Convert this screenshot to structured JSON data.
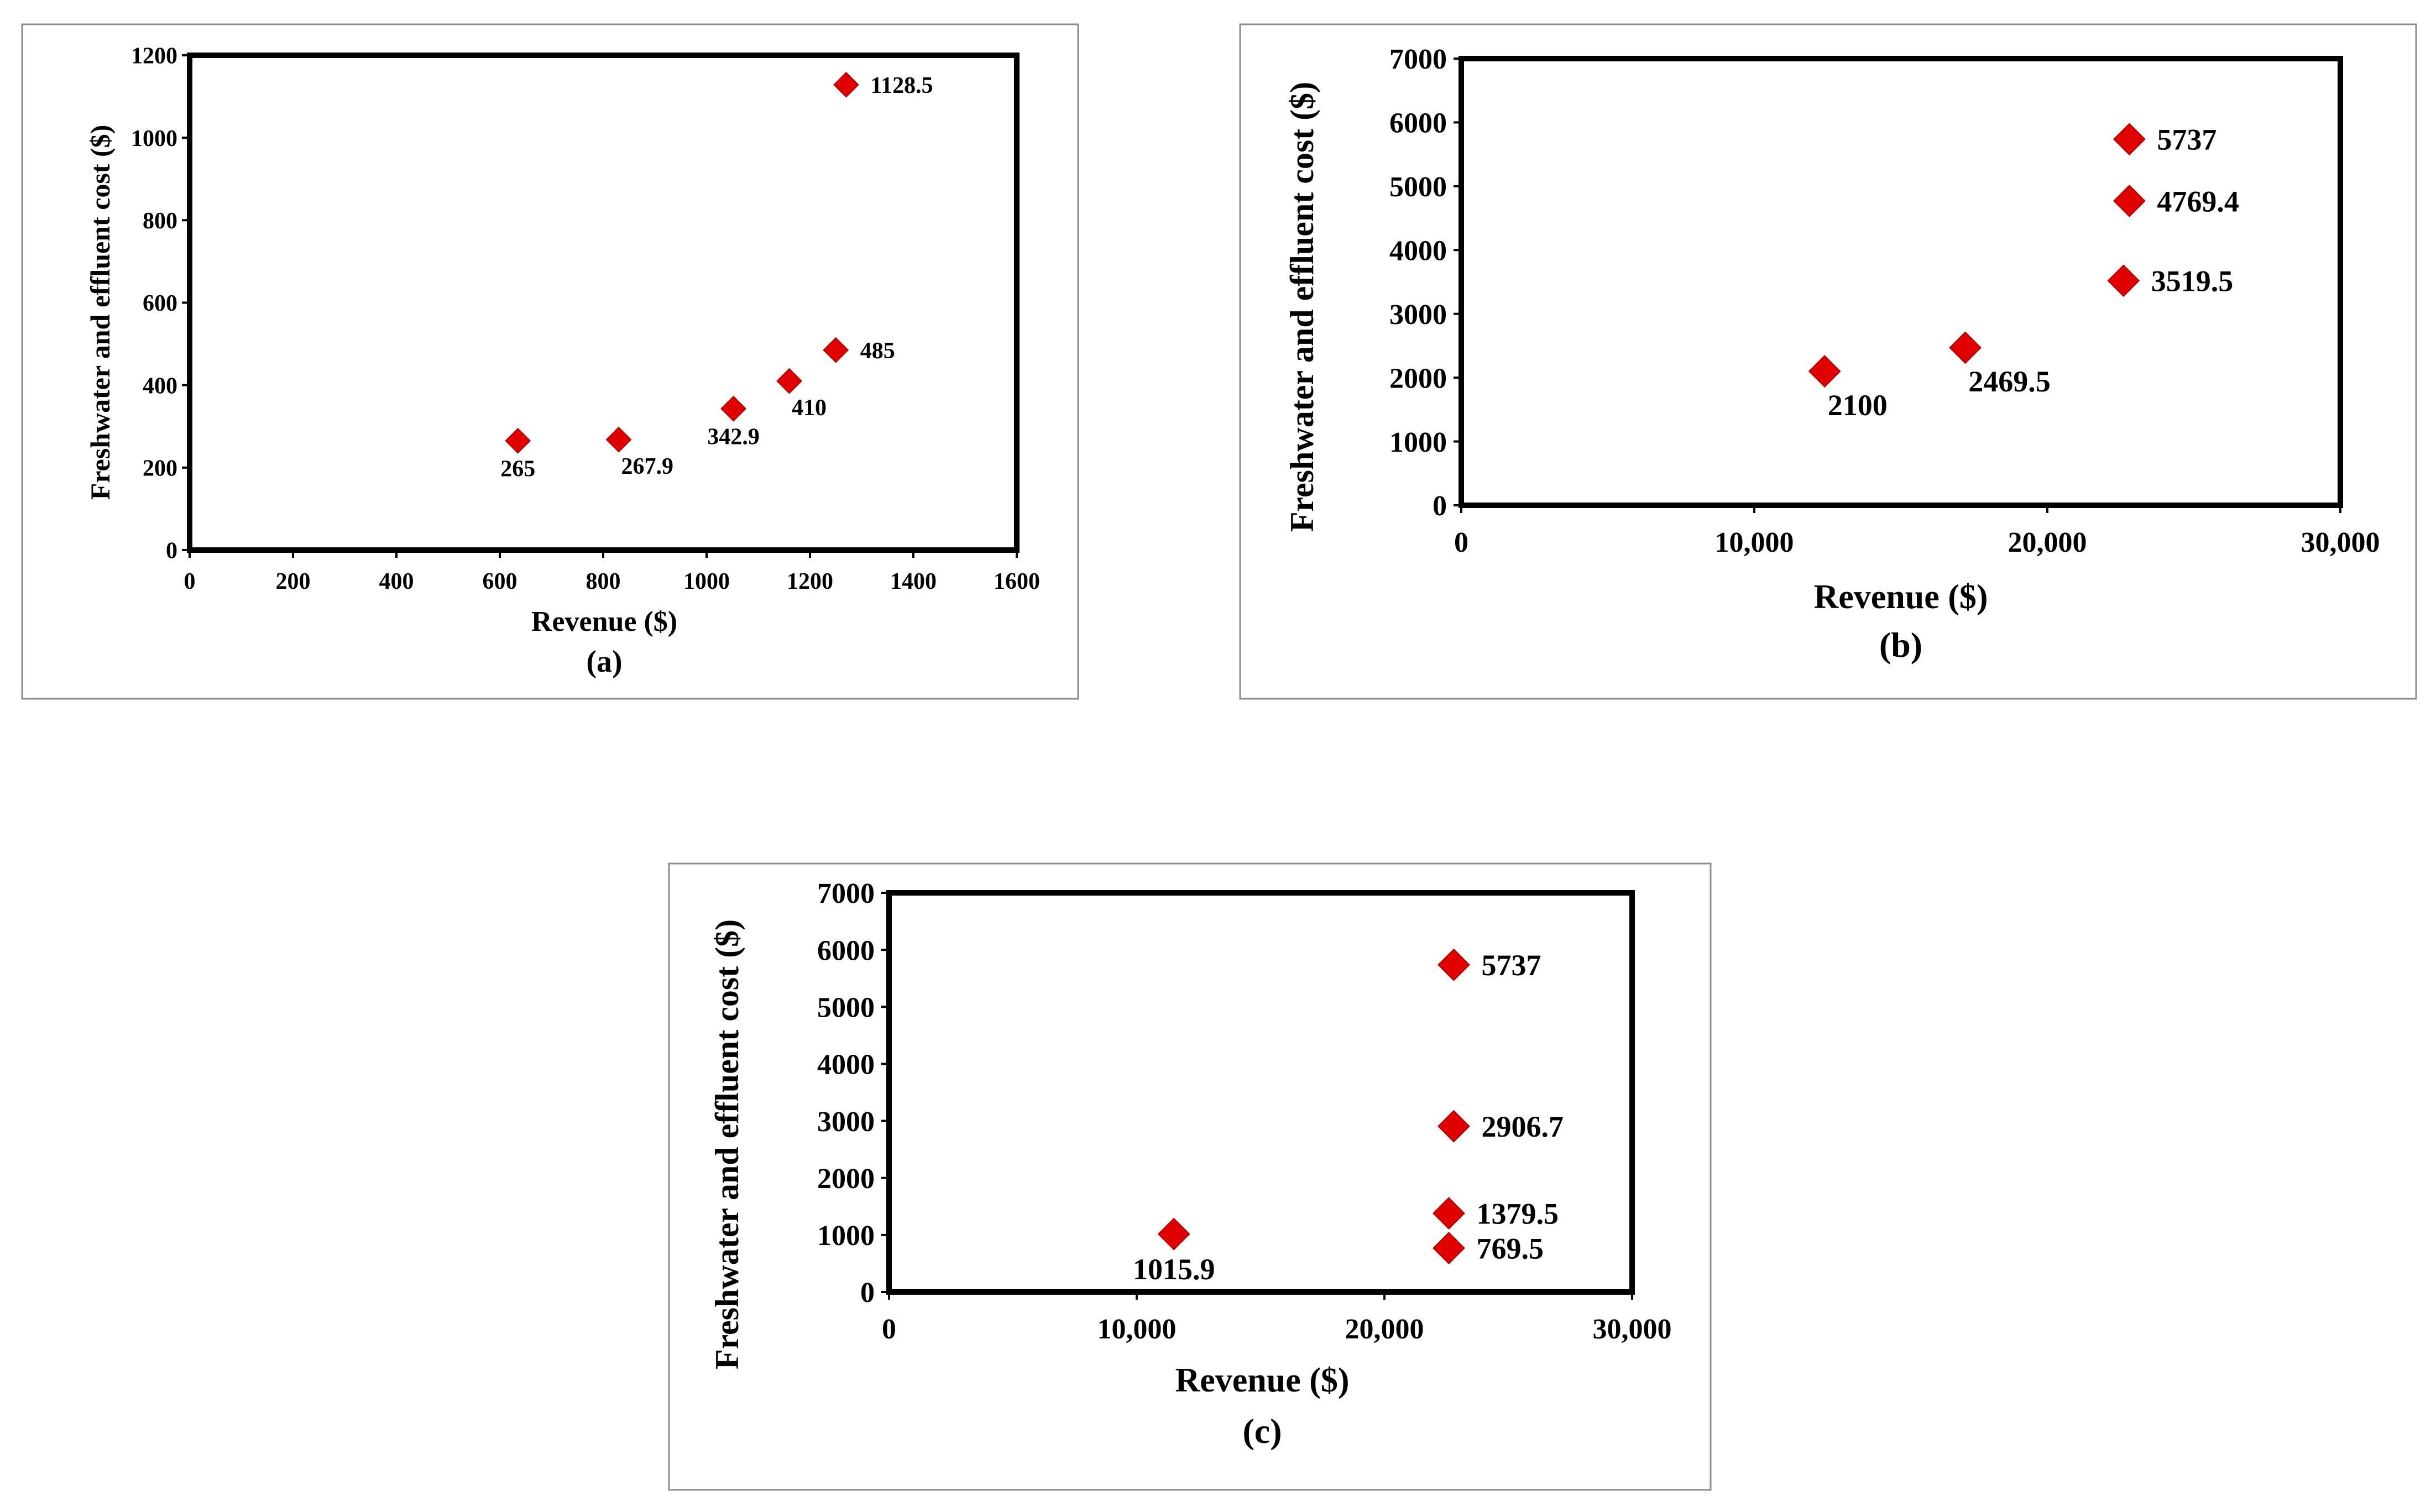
{
  "chart_data": [
    {
      "id": "a",
      "type": "scatter",
      "caption": "(a)",
      "xlabel": "Revenue ($)",
      "ylabel": "Freshwater and effluent cost ($)",
      "xlim": [
        0,
        1600
      ],
      "ylim": [
        0,
        1200
      ],
      "xticks": [
        0,
        200,
        400,
        600,
        800,
        1000,
        1200,
        1400,
        1600
      ],
      "xtick_labels": [
        "0",
        "200",
        "400",
        "600",
        "800",
        "1000",
        "1200",
        "1400",
        "1600"
      ],
      "yticks": [
        0,
        200,
        400,
        600,
        800,
        1000,
        1200
      ],
      "ytick_labels": [
        "0",
        "200",
        "400",
        "600",
        "800",
        "1000",
        "1200"
      ],
      "marker_color": "#e00000",
      "grid": false,
      "points": [
        {
          "x": 635,
          "y": 265,
          "label": "265",
          "label_pos": "below"
        },
        {
          "x": 830,
          "y": 267.9,
          "label": "267.9",
          "label_pos": "below-right"
        },
        {
          "x": 1052,
          "y": 342.9,
          "label": "342.9",
          "label_pos": "below"
        },
        {
          "x": 1160,
          "y": 410,
          "label": "410",
          "label_pos": "below-right"
        },
        {
          "x": 1250,
          "y": 485,
          "label": "485",
          "label_pos": "right"
        },
        {
          "x": 1270,
          "y": 1128.5,
          "label": "1128.5",
          "label_pos": "right"
        }
      ]
    },
    {
      "id": "b",
      "type": "scatter",
      "caption": "(b)",
      "xlabel": "Revenue ($)",
      "ylabel": "Freshwater and effluent cost ($)",
      "xlim": [
        0,
        30000
      ],
      "ylim": [
        0,
        7000
      ],
      "xticks": [
        0,
        10000,
        20000,
        30000
      ],
      "xtick_labels": [
        "0",
        "10,000",
        "20,000",
        "30,000"
      ],
      "yticks": [
        0,
        1000,
        2000,
        3000,
        4000,
        5000,
        6000,
        7000
      ],
      "ytick_labels": [
        "0",
        "1000",
        "2000",
        "3000",
        "4000",
        "5000",
        "6000",
        "7000"
      ],
      "marker_color": "#e00000",
      "grid": false,
      "points": [
        {
          "x": 12400,
          "y": 2100,
          "label": "2100",
          "label_pos": "below-right"
        },
        {
          "x": 17200,
          "y": 2469.5,
          "label": "2469.5",
          "label_pos": "below-right"
        },
        {
          "x": 22600,
          "y": 3519.5,
          "label": "3519.5",
          "label_pos": "right"
        },
        {
          "x": 22800,
          "y": 4769.4,
          "label": "4769.4",
          "label_pos": "right"
        },
        {
          "x": 22800,
          "y": 5737,
          "label": "5737",
          "label_pos": "right"
        }
      ]
    },
    {
      "id": "c",
      "type": "scatter",
      "caption": "(c)",
      "xlabel": "Revenue ($)",
      "ylabel": "Freshwater and effluent cost ($)",
      "xlim": [
        0,
        30000
      ],
      "ylim": [
        0,
        7000
      ],
      "xticks": [
        0,
        10000,
        20000,
        30000
      ],
      "xtick_labels": [
        "0",
        "10,000",
        "20,000",
        "30,000"
      ],
      "yticks": [
        0,
        1000,
        2000,
        3000,
        4000,
        5000,
        6000,
        7000
      ],
      "ytick_labels": [
        "0",
        "1000",
        "2000",
        "3000",
        "4000",
        "5000",
        "6000",
        "7000"
      ],
      "marker_color": "#e00000",
      "grid": false,
      "points": [
        {
          "x": 11500,
          "y": 1015.9,
          "label": "1015.9",
          "label_pos": "below"
        },
        {
          "x": 22600,
          "y": 769.5,
          "label": "769.5",
          "label_pos": "right"
        },
        {
          "x": 22600,
          "y": 1379.5,
          "label": "1379.5",
          "label_pos": "right"
        },
        {
          "x": 22800,
          "y": 2906.7,
          "label": "2906.7",
          "label_pos": "right"
        },
        {
          "x": 22800,
          "y": 5737,
          "label": "5737",
          "label_pos": "right"
        }
      ]
    }
  ]
}
